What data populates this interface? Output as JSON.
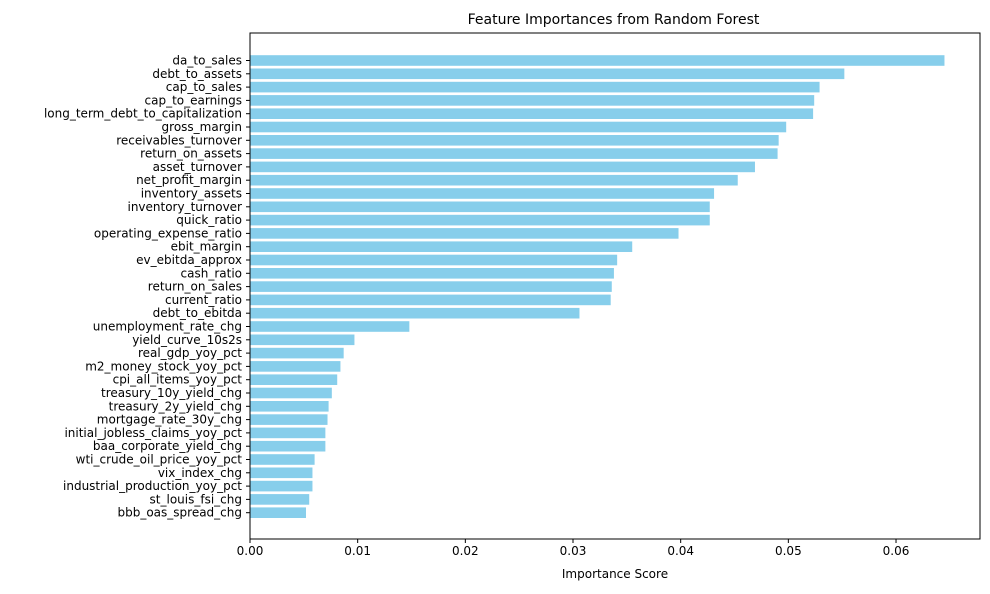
{
  "chart_data": {
    "type": "bar",
    "orientation": "horizontal",
    "title": "Feature Importances from Random Forest",
    "xlabel": "Importance Score",
    "ylabel": "",
    "xlim": [
      0,
      0.0678
    ],
    "xticks": [
      0.0,
      0.01,
      0.02,
      0.03,
      0.04,
      0.05,
      0.06
    ],
    "xtick_labels": [
      "0.00",
      "0.01",
      "0.02",
      "0.03",
      "0.04",
      "0.05",
      "0.06"
    ],
    "grid": false,
    "legend": "none",
    "bar_color": "#87ceeb",
    "categories": [
      "da_to_sales",
      "debt_to_assets",
      "cap_to_sales",
      "cap_to_earnings",
      "long_term_debt_to_capitalization",
      "gross_margin",
      "receivables_turnover",
      "return_on_assets",
      "asset_turnover",
      "net_profit_margin",
      "inventory_assets",
      "inventory_turnover",
      "quick_ratio",
      "operating_expense_ratio",
      "ebit_margin",
      "ev_ebitda_approx",
      "cash_ratio",
      "return_on_sales",
      "current_ratio",
      "debt_to_ebitda",
      "unemployment_rate_chg",
      "yield_curve_10s2s",
      "real_gdp_yoy_pct",
      "m2_money_stock_yoy_pct",
      "cpi_all_items_yoy_pct",
      "treasury_10y_yield_chg",
      "treasury_2y_yield_chg",
      "mortgage_rate_30y_chg",
      "initial_jobless_claims_yoy_pct",
      "baa_corporate_yield_chg",
      "wti_crude_oil_price_yoy_pct",
      "vix_index_chg",
      "industrial_production_yoy_pct",
      "st_louis_fsi_chg",
      "bbb_oas_spread_chg"
    ],
    "values": [
      0.0645,
      0.0552,
      0.0529,
      0.0524,
      0.0523,
      0.0498,
      0.0491,
      0.049,
      0.0469,
      0.0453,
      0.0431,
      0.0427,
      0.0427,
      0.0398,
      0.0355,
      0.0341,
      0.0338,
      0.0336,
      0.0335,
      0.0306,
      0.0148,
      0.0097,
      0.0087,
      0.0084,
      0.0081,
      0.0076,
      0.0073,
      0.0072,
      0.007,
      0.007,
      0.006,
      0.0058,
      0.0058,
      0.0055,
      0.0052
    ]
  }
}
